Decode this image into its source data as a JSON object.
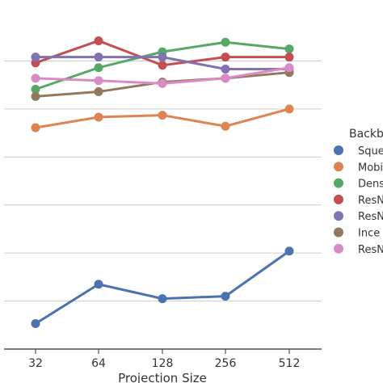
{
  "chart_data": {
    "type": "line",
    "xlabel": "Projection Size",
    "ylabel": "",
    "categories": [
      "32",
      "64",
      "128",
      "256",
      "512"
    ],
    "legend_title": "Backb",
    "legend_position": "right",
    "grid": "horizontal",
    "y_scale_note": "y-axis tick labels are cropped out of the image; values below are in relative plot units (0 = bottom gridline, 6 = top of plot)",
    "ylim": [
      -1.0,
      6.0
    ],
    "series": [
      {
        "name": "Sque",
        "color": "#4c72b0",
        "values": [
          -0.47,
          0.35,
          0.05,
          0.1,
          1.04
        ]
      },
      {
        "name": "Mobi",
        "color": "#dd8452",
        "values": [
          3.61,
          3.83,
          3.87,
          3.64,
          4.0
        ]
      },
      {
        "name": "Dens",
        "color": "#55a868",
        "values": [
          4.41,
          4.86,
          5.19,
          5.39,
          5.25
        ]
      },
      {
        "name": "ResN",
        "color": "#c44e52",
        "values": [
          4.96,
          5.42,
          4.91,
          5.08,
          5.08
        ]
      },
      {
        "name": "ResN",
        "color": "#8172b2",
        "values": [
          5.08,
          5.08,
          5.08,
          4.83,
          4.83
        ]
      },
      {
        "name": "Ince",
        "color": "#937860",
        "values": [
          4.26,
          4.36,
          4.56,
          4.64,
          4.76
        ]
      },
      {
        "name": "ResN",
        "color": "#da8bc3",
        "values": [
          4.64,
          4.59,
          4.53,
          4.64,
          4.86
        ]
      }
    ]
  }
}
